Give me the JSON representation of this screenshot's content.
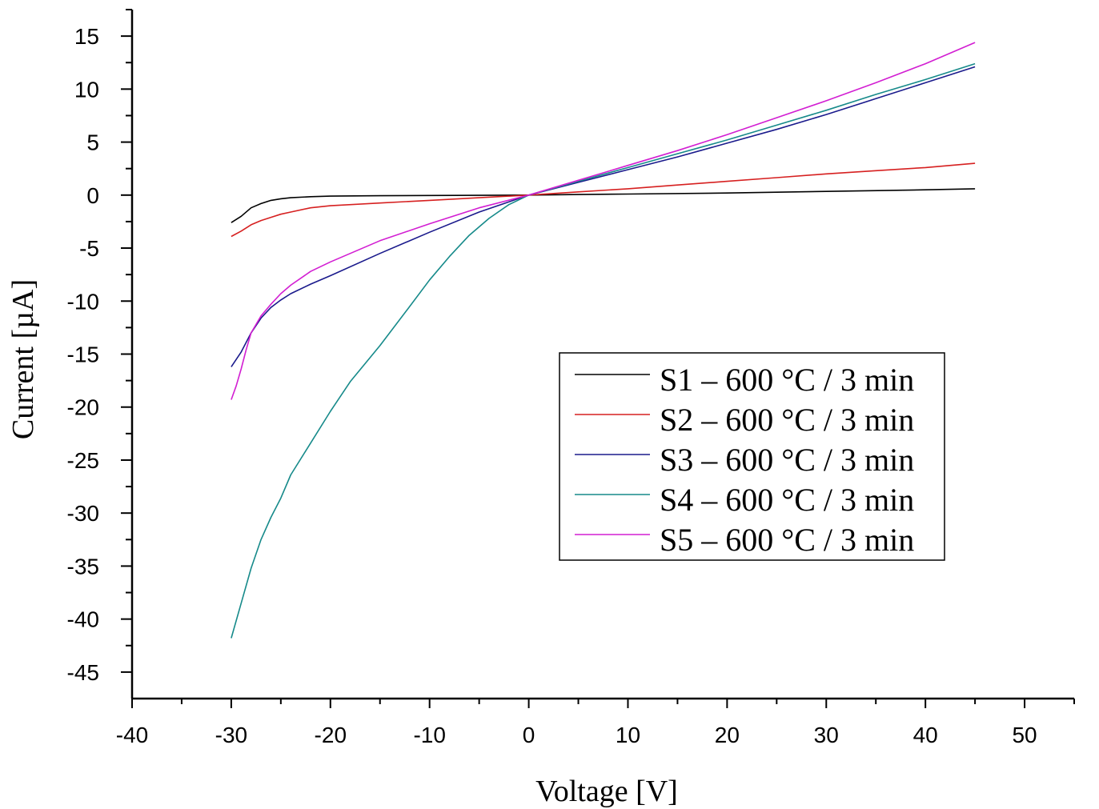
{
  "chart_data": {
    "type": "line",
    "title": "",
    "xlabel": "Voltage [V]",
    "ylabel": "Current [µA]",
    "xlim": [
      -40,
      55
    ],
    "ylim": [
      -47.5,
      17.5
    ],
    "xticks": [
      -40,
      -30,
      -20,
      -10,
      0,
      10,
      20,
      30,
      40,
      50
    ],
    "yticks": [
      15,
      10,
      5,
      0,
      -5,
      -10,
      -15,
      -20,
      -25,
      -30,
      -35,
      -40,
      -45
    ],
    "grid": false,
    "legend_position": "center-right",
    "series": [
      {
        "name": "S1 – 600 °C / 3 min",
        "color": "#000000",
        "x": [
          -30,
          -29,
          -28,
          -27,
          -26,
          -25,
          -24,
          -22,
          -20,
          -15,
          -10,
          -5,
          0,
          5,
          10,
          20,
          30,
          40,
          45
        ],
        "y": [
          -2.6,
          -2.0,
          -1.2,
          -0.8,
          -0.5,
          -0.35,
          -0.25,
          -0.15,
          -0.1,
          -0.06,
          -0.04,
          -0.02,
          0,
          0.05,
          0.1,
          0.2,
          0.35,
          0.5,
          0.6
        ]
      },
      {
        "name": "S2 – 600 °C / 3 min",
        "color": "#d62020",
        "x": [
          -30,
          -29,
          -28,
          -27,
          -26,
          -25,
          -24,
          -22,
          -20,
          -15,
          -10,
          -5,
          0,
          5,
          10,
          15,
          20,
          25,
          30,
          35,
          40,
          45
        ],
        "y": [
          -3.9,
          -3.4,
          -2.8,
          -2.4,
          -2.1,
          -1.8,
          -1.6,
          -1.2,
          -1.0,
          -0.75,
          -0.5,
          -0.25,
          0,
          0.3,
          0.6,
          0.95,
          1.3,
          1.65,
          2.0,
          2.3,
          2.6,
          3.0
        ]
      },
      {
        "name": "S3 – 600 °C / 3 min",
        "color": "#1a1a8c",
        "x": [
          -30,
          -29,
          -28,
          -27,
          -26,
          -25,
          -24,
          -22,
          -20,
          -15,
          -10,
          -5,
          0,
          5,
          10,
          15,
          20,
          25,
          30,
          35,
          40,
          45
        ],
        "y": [
          -16.2,
          -14.8,
          -13.0,
          -11.6,
          -10.6,
          -9.9,
          -9.3,
          -8.4,
          -7.6,
          -5.5,
          -3.5,
          -1.6,
          0,
          1.2,
          2.4,
          3.6,
          4.9,
          6.2,
          7.6,
          9.1,
          10.6,
          12.1
        ]
      },
      {
        "name": "S4 – 600 °C / 3 min",
        "color": "#168a8a",
        "x": [
          -30,
          -29,
          -28,
          -27,
          -26,
          -25,
          -24,
          -22,
          -20,
          -18,
          -15,
          -12,
          -10,
          -8,
          -6,
          -4,
          -2,
          0,
          5,
          10,
          15,
          20,
          25,
          30,
          35,
          40,
          45
        ],
        "y": [
          -41.8,
          -38.5,
          -35.2,
          -32.5,
          -30.4,
          -28.6,
          -26.4,
          -23.4,
          -20.4,
          -17.6,
          -14.2,
          -10.5,
          -8.0,
          -5.8,
          -3.8,
          -2.2,
          -0.9,
          0,
          1.3,
          2.6,
          3.9,
          5.2,
          6.6,
          8.0,
          9.5,
          10.9,
          12.4
        ]
      },
      {
        "name": "S5 – 600 °C / 3 min",
        "color": "#d21ed2",
        "x": [
          -30,
          -29.5,
          -29,
          -28.5,
          -28,
          -27,
          -26,
          -25,
          -24,
          -22,
          -20,
          -15,
          -10,
          -5,
          0,
          5,
          10,
          15,
          20,
          25,
          30,
          35,
          40,
          45
        ],
        "y": [
          -19.3,
          -18.0,
          -16.4,
          -14.6,
          -13.0,
          -11.4,
          -10.3,
          -9.3,
          -8.5,
          -7.2,
          -6.3,
          -4.3,
          -2.7,
          -1.2,
          0,
          1.4,
          2.8,
          4.2,
          5.7,
          7.3,
          8.9,
          10.6,
          12.4,
          14.4
        ]
      }
    ]
  }
}
